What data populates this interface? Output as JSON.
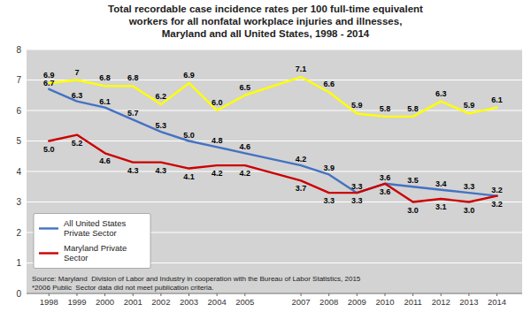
{
  "chart_data": {
    "type": "line",
    "title": "Total recordable case incidence rates per 100 full-time equivalent\nworkers for all nonfatal workplace injuries and illnesses,\nMaryland and all United States, 1998 - 2014",
    "x": [
      1998,
      1999,
      2000,
      2001,
      2002,
      2003,
      2004,
      2005,
      2007,
      2008,
      2009,
      2010,
      2011,
      2012,
      2013,
      2014
    ],
    "xlim": [
      1997.2,
      2014.9
    ],
    "xticks": [
      1998,
      1999,
      2000,
      2001,
      2002,
      2003,
      2004,
      2005,
      2007,
      2008,
      2009,
      2010,
      2011,
      2012,
      2013,
      2014
    ],
    "ylim": [
      0,
      8
    ],
    "yticks": [
      0,
      1,
      2,
      3,
      4,
      5,
      6,
      7,
      8
    ],
    "grid": true,
    "legend": "lower left",
    "data_labels": true,
    "annotations": [
      "Source: Maryland  Division of Labor and Industry in cooperation with the Bureau of Labor Statistics, 2015\n*2006 Public  Sector data did not meet publication criteria."
    ],
    "series": [
      {
        "color": "#FFFF00",
        "values": [
          6.9,
          7.0,
          6.8,
          6.8,
          6.2,
          6.9,
          6.0,
          6.5,
          7.1,
          6.6,
          5.9,
          5.8,
          5.8,
          6.3,
          5.9,
          6.1
        ],
        "value_labels": [
          "6.9",
          "7",
          "6.8",
          "6.8",
          "6.2",
          "6.9",
          "6.0",
          "6.5",
          "7.1",
          "6.6",
          "5.9",
          "5.8",
          "5.8",
          "6.3",
          "5.9",
          "6.1"
        ]
      },
      {
        "name": "All United States\nPrivate Sector",
        "color": "#4472C4",
        "values": [
          6.7,
          6.3,
          6.1,
          5.7,
          5.3,
          5.0,
          4.8,
          4.6,
          4.2,
          3.9,
          3.3,
          3.6,
          3.5,
          3.4,
          3.3,
          3.2
        ],
        "value_labels": [
          "6.7",
          "6.3",
          "6.1",
          "5.7",
          "5.3",
          "5.0",
          "4.8",
          "4.6",
          "4.2",
          "3.9",
          "3.3",
          "3.6",
          "3.5",
          "3.4",
          "3.3",
          "3.2"
        ]
      },
      {
        "name": "Maryland Private\nSector",
        "color": "#CC0000",
        "values": [
          5.0,
          5.2,
          4.6,
          4.3,
          4.3,
          4.1,
          4.2,
          4.2,
          3.7,
          3.3,
          3.3,
          3.6,
          3.0,
          3.1,
          3.0,
          3.2
        ],
        "value_labels": [
          "5.0",
          "5.2",
          "4.6",
          "4.3",
          "4.3",
          "4.1",
          "4.2",
          "4.2",
          "3.7",
          "3.3",
          "3.3",
          "3.6",
          "3.0",
          "3.1",
          "3.0",
          "3.2"
        ]
      }
    ]
  }
}
